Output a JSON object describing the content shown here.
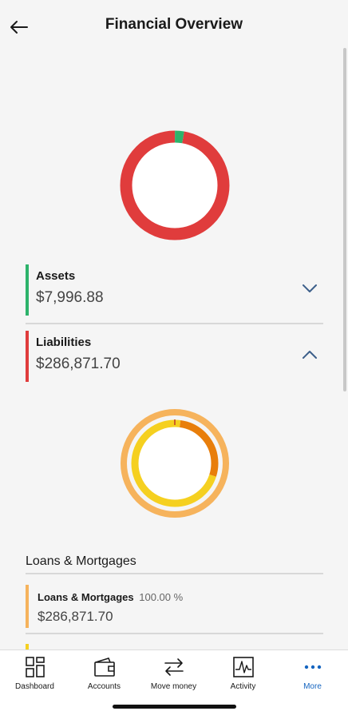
{
  "header": {
    "title": "Financial Overview"
  },
  "summary_chart": {
    "assets_share_percent": 2.71,
    "liabilities_share_percent": 97.29,
    "colors": {
      "assets": "#2db36b",
      "liabilities": "#e03c3c"
    }
  },
  "sections": {
    "assets": {
      "label": "Assets",
      "value": "$7,996.88",
      "accent": "#2db36b",
      "expanded": false
    },
    "liabilities": {
      "label": "Liabilities",
      "value": "$286,871.70",
      "accent": "#e03c3c",
      "expanded": true
    }
  },
  "liabilities_chart": {
    "outer_ring_color": "#f6b35c",
    "inner_segments": [
      {
        "color": "#e87e0b",
        "share_percent": 28
      },
      {
        "color": "#f5d020",
        "share_percent": 72
      }
    ]
  },
  "loans": {
    "heading": "Loans & Mortgages",
    "item": {
      "label": "Loans & Mortgages",
      "percent": "100.00 %",
      "value": "$286,871.70"
    }
  },
  "tabbar": {
    "tabs": [
      {
        "label": "Dashboard",
        "icon": "dashboard-icon",
        "active": false
      },
      {
        "label": "Accounts",
        "icon": "wallet-icon",
        "active": false
      },
      {
        "label": "Move money",
        "icon": "transfer-icon",
        "active": false
      },
      {
        "label": "Activity",
        "icon": "activity-icon",
        "active": false
      },
      {
        "label": "More",
        "icon": "more-icon",
        "active": true
      }
    ],
    "active_color": "#1565c0"
  }
}
